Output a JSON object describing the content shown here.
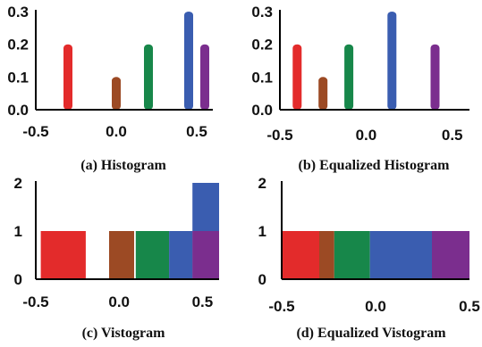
{
  "chart_data": [
    {
      "type": "bar",
      "caption": "(a) Histogram",
      "xlim": [
        -0.5,
        0.6
      ],
      "ylim": [
        0,
        0.3
      ],
      "xticks": [
        "-0.5",
        "0.0",
        "0.5"
      ],
      "yticks": [
        "0.0",
        "0.1",
        "0.2",
        "0.3"
      ],
      "bars": [
        {
          "x": -0.3,
          "value": 0.2,
          "color": "#e32b2b"
        },
        {
          "x": 0.0,
          "value": 0.1,
          "color": "#9c4a24"
        },
        {
          "x": 0.2,
          "value": 0.2,
          "color": "#17874a"
        },
        {
          "x": 0.45,
          "value": 0.3,
          "color": "#3a5db0"
        },
        {
          "x": 0.55,
          "value": 0.2,
          "color": "#7b2e8e"
        }
      ]
    },
    {
      "type": "bar",
      "caption": "(b) Equalized  Histogram",
      "xlim": [
        -0.5,
        0.6
      ],
      "ylim": [
        0,
        0.3
      ],
      "xticks": [
        "-0.5",
        "0.0",
        "0.5"
      ],
      "yticks": [
        "0.0",
        "0.1",
        "0.2",
        "0.3"
      ],
      "bars": [
        {
          "x": -0.4,
          "value": 0.2,
          "color": "#e32b2b"
        },
        {
          "x": -0.25,
          "value": 0.1,
          "color": "#9c4a24"
        },
        {
          "x": -0.1,
          "value": 0.2,
          "color": "#17874a"
        },
        {
          "x": 0.15,
          "value": 0.3,
          "color": "#3a5db0"
        },
        {
          "x": 0.4,
          "value": 0.2,
          "color": "#7b2e8e"
        }
      ]
    },
    {
      "type": "bar",
      "caption": "(c) Vistogram",
      "xlim": [
        -0.5,
        0.6
      ],
      "ylim": [
        0,
        2
      ],
      "xticks": [
        "-0.5",
        "0.0",
        "0.5"
      ],
      "yticks": [
        "0",
        "1",
        "2"
      ],
      "bars": [
        {
          "x0": -0.47,
          "x1": -0.2,
          "value": 1,
          "color": "#e32b2b"
        },
        {
          "x0": -0.06,
          "x1": 0.09,
          "value": 1,
          "color": "#9c4a24"
        },
        {
          "x0": 0.1,
          "x1": 0.3,
          "value": 1,
          "color": "#17874a"
        },
        {
          "x0": 0.3,
          "x1": 0.44,
          "value": 1,
          "color": "#3a5db0"
        },
        {
          "x0": 0.44,
          "x1": 0.6,
          "value": 2,
          "color": "#3a5db0"
        },
        {
          "x0": 0.44,
          "x1": 0.6,
          "value": 1,
          "color": "#7b2e8e"
        }
      ]
    },
    {
      "type": "bar",
      "caption": "(d) Equalized  Vistogram",
      "xlim": [
        -0.5,
        0.5
      ],
      "ylim": [
        0,
        2
      ],
      "xticks": [
        "-0.5",
        "0.0",
        "0.5"
      ],
      "yticks": [
        "0",
        "1",
        "2"
      ],
      "bars": [
        {
          "x0": -0.5,
          "x1": -0.3,
          "value": 1,
          "color": "#e32b2b"
        },
        {
          "x0": -0.3,
          "x1": -0.22,
          "value": 1,
          "color": "#9c4a24"
        },
        {
          "x0": -0.22,
          "x1": -0.03,
          "value": 1,
          "color": "#17874a"
        },
        {
          "x0": -0.03,
          "x1": 0.3,
          "value": 1,
          "color": "#3a5db0"
        },
        {
          "x0": 0.3,
          "x1": 0.5,
          "value": 1,
          "color": "#7b2e8e"
        }
      ]
    }
  ]
}
